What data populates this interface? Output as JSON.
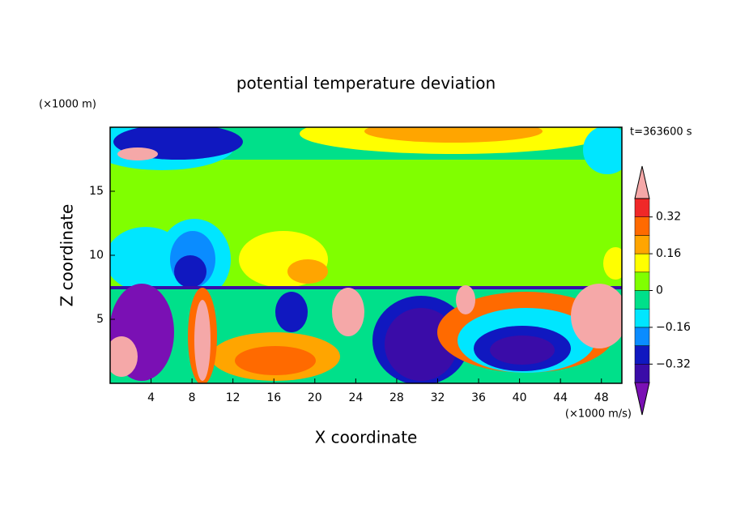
{
  "chart_data": {
    "type": "contour",
    "title": "potential temperature deviation",
    "x_label": "X coordinate",
    "y_label": "Z coordinate",
    "x_unit": "(×1000 m/s)",
    "y_unit": "(×1000 m)",
    "time_label": "t=363600 s",
    "xlim": [
      0,
      50
    ],
    "ylim": [
      0,
      20
    ],
    "xticks": [
      4,
      8,
      12,
      16,
      20,
      24,
      28,
      32,
      36,
      40,
      44,
      48
    ],
    "yticks": [
      5,
      10,
      15
    ],
    "colorbar": {
      "lim": [
        -0.4,
        0.4
      ],
      "levels": [
        -0.4,
        -0.32,
        -0.24,
        -0.16,
        -0.08,
        0,
        0.08,
        0.16,
        0.24,
        0.32,
        0.4
      ],
      "colors": [
        "#7a10b4",
        "#3a0ca8",
        "#1018c0",
        "#0a8cff",
        "#00e6ff",
        "#00e08a",
        "#80ff00",
        "#ffff00",
        "#ffa500",
        "#ff6a00",
        "#f02828",
        "#f5a8a8"
      ],
      "ticks": [
        {
          "value": 0.32,
          "label": "0.32"
        },
        {
          "value": 0.16,
          "label": "0.16"
        },
        0,
        {
          "value": -0.16,
          "label": "−0.16"
        },
        {
          "value": -0.32,
          "label": "−0.32"
        }
      ]
    }
  }
}
